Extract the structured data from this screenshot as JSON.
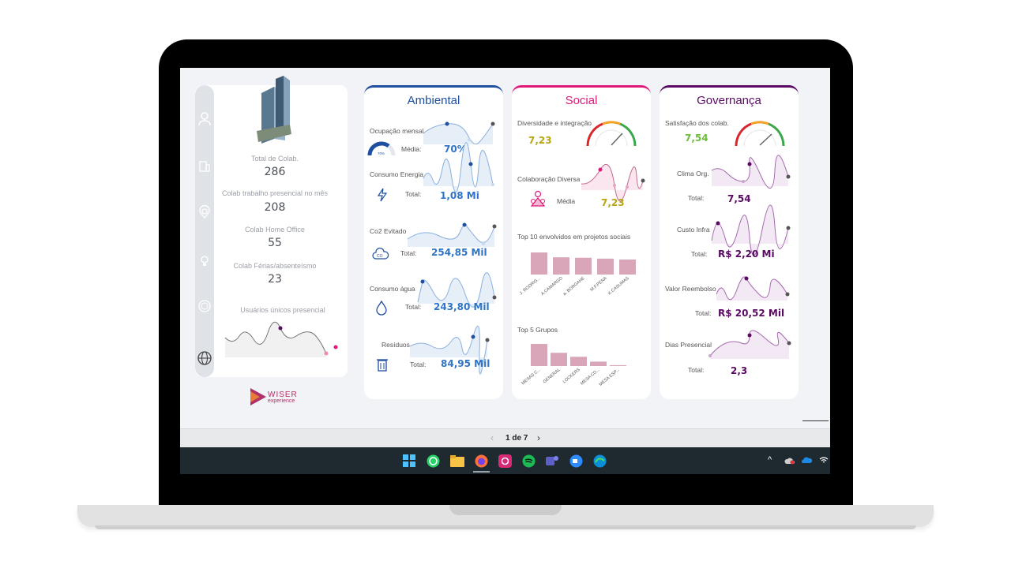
{
  "left": {
    "stats": [
      {
        "label": "Total de Colab.",
        "value": "286"
      },
      {
        "label": "Colab trabalho presencial no mês",
        "value": "208"
      },
      {
        "label": "Colab Home Office",
        "value": "55"
      },
      {
        "label": "Colab Férias/absenteísmo",
        "value": "23"
      }
    ],
    "unique_label": "Usuários únicos presencial",
    "logo_text": "WISER",
    "logo_sub": "experience"
  },
  "ambiental": {
    "title": "Ambiental",
    "color": "#1f4fa0",
    "ocupacao": {
      "label": "Ocupação mensal",
      "sub": "Média:",
      "value": "70%",
      "gauge_pct": 70,
      "gauge_text": "70%"
    },
    "energia": {
      "label": "Consumo Energia",
      "sub": "Total:",
      "value": "1,08 Mi"
    },
    "co2": {
      "label": "Co2 Evitado",
      "sub": "Total:",
      "value": "254,85 Mil"
    },
    "agua": {
      "label": "Consumo água",
      "sub": "Total:",
      "value": "243,80 Mil"
    },
    "residuos": {
      "label": "Resíduos",
      "sub": "Total:",
      "value": "84,95 Mil"
    }
  },
  "social": {
    "title": "Social",
    "color": "#e0187a",
    "diversidade": {
      "label": "Diversidade e integração",
      "value": "7,23"
    },
    "colaboracao": {
      "label": "Colaboração Diversa",
      "sub": "Média",
      "value": "7,23"
    },
    "top10": {
      "label": "Top 10 envolvidos em projetos sociais",
      "categories": [
        "J. RODRIG...",
        "A.CAMARGO",
        "a. BORGAHE",
        "M.F.PENA",
        "K.CASUMAS"
      ],
      "values": [
        100,
        78,
        76,
        72,
        68
      ]
    },
    "top5": {
      "label": "Top 5 Grupos",
      "categories": [
        "MESAS C...",
        "GENERAL",
        "LOCKERS",
        "MESA CO...",
        "MESA ESP..."
      ],
      "values": [
        100,
        60,
        42,
        20,
        4
      ]
    }
  },
  "governanca": {
    "title": "Governança",
    "color": "#5a0a64",
    "satisfacao": {
      "label": "Satisfação dos colab.",
      "value": "7,54"
    },
    "clima": {
      "label": "Clima Org.",
      "sub": "Total:",
      "value": "7,54"
    },
    "infra": {
      "label": "Custo Infra",
      "sub": "Total:",
      "value": "R$ 2,20 Mi"
    },
    "reembolso": {
      "label": "Valor Reembolso",
      "sub": "Total:",
      "value": "R$ 20,52 Mil"
    },
    "presencial": {
      "label": "Dias Presencial",
      "sub": "Total:",
      "value": "2,3"
    }
  },
  "pager": {
    "prev": "‹",
    "text": "1 de 7",
    "next": "›"
  },
  "taskbar": {
    "icons": [
      "windows-icon",
      "whatsapp-icon",
      "folder-icon",
      "firefox-icon",
      "instagram-icon",
      "spotify-icon",
      "teams-icon",
      "zoom-icon",
      "edge-icon"
    ]
  },
  "tray": {
    "caret": "^"
  }
}
